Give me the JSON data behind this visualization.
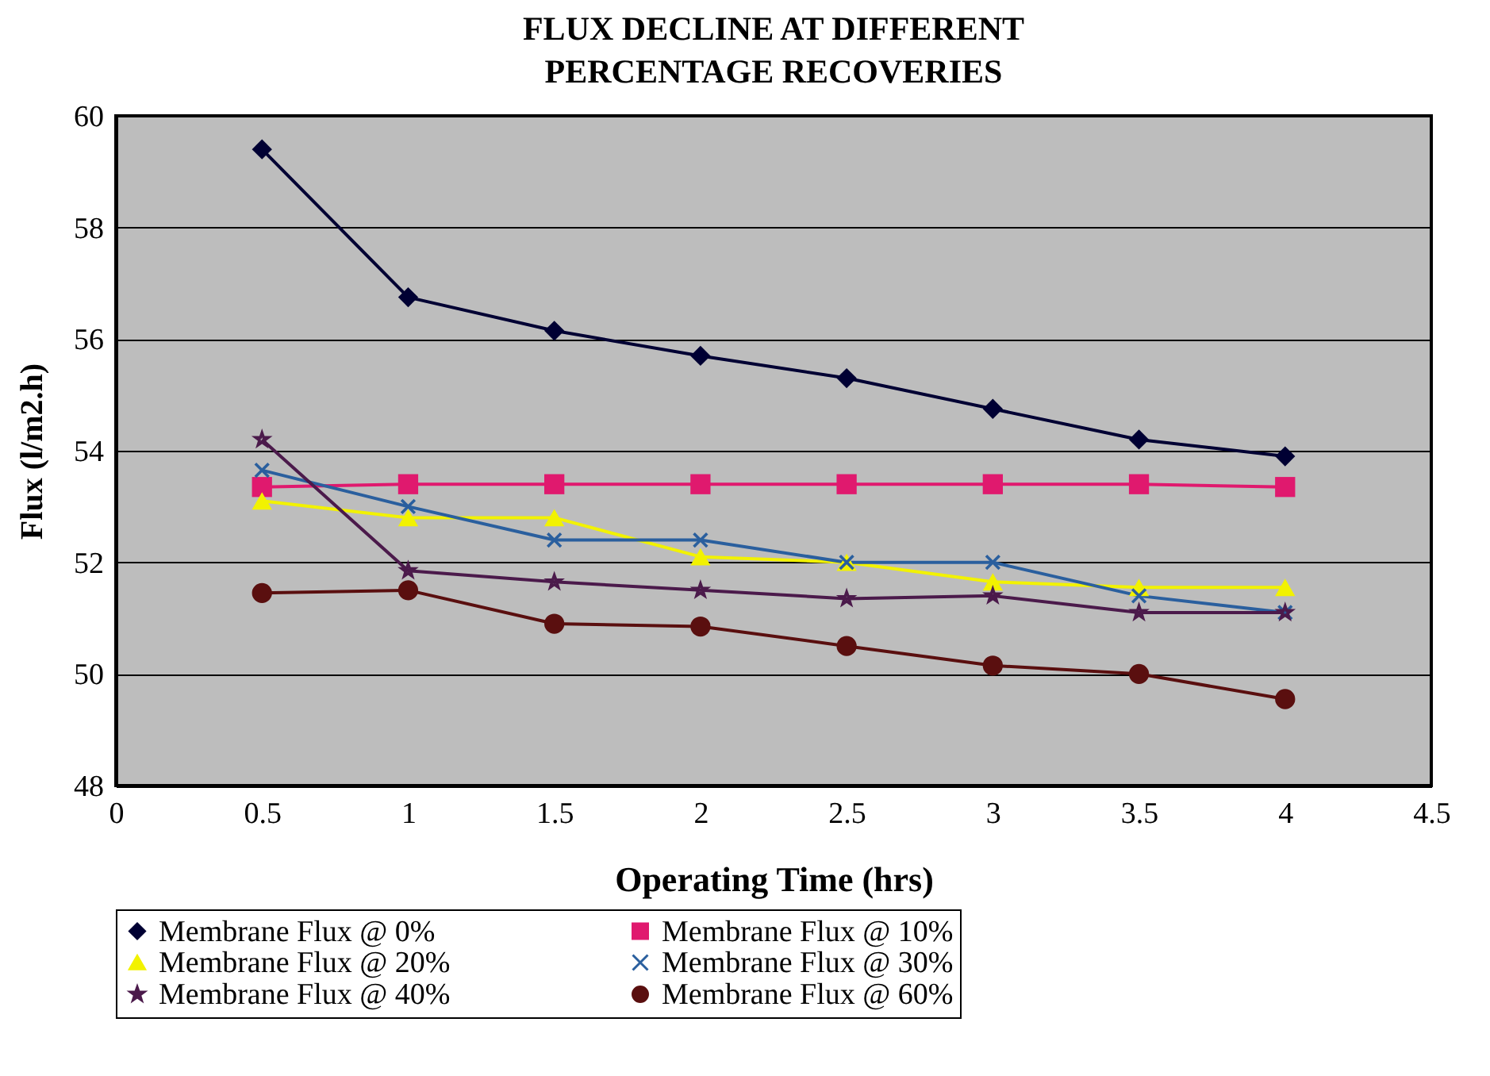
{
  "chart_data": {
    "type": "line",
    "title": "FLUX DECLINE AT DIFFERENT PERCENTAGE RECOVERIES",
    "xlabel": "Operating Time (hrs)",
    "ylabel": "Flux (l/m2.h)",
    "x": [
      0.5,
      1,
      1.5,
      2,
      2.5,
      3,
      3.5,
      4
    ],
    "series": [
      {
        "name": "Membrane Flux @ 0%",
        "color": "#000033",
        "marker": "diamond",
        "values": [
          59.4,
          56.75,
          56.15,
          55.7,
          55.3,
          54.75,
          54.2,
          53.9
        ]
      },
      {
        "name": "Membrane Flux @ 10%",
        "color": "#e0196e",
        "marker": "square",
        "values": [
          53.35,
          53.4,
          53.4,
          53.4,
          53.4,
          53.4,
          53.4,
          53.35
        ]
      },
      {
        "name": "Membrane Flux @ 20%",
        "color": "#f2f200",
        "marker": "triangle",
        "values": [
          53.1,
          52.8,
          52.8,
          52.1,
          52.0,
          51.65,
          51.55,
          51.55
        ]
      },
      {
        "name": "Membrane Flux @ 30%",
        "color": "#2a5f9e",
        "marker": "cross",
        "values": [
          53.65,
          53.0,
          52.4,
          52.4,
          52.0,
          52.0,
          51.4,
          51.1
        ]
      },
      {
        "name": "Membrane Flux @ 40%",
        "color": "#4b1a4b",
        "marker": "star",
        "values": [
          54.2,
          51.85,
          51.65,
          51.5,
          51.35,
          51.4,
          51.1,
          51.1
        ]
      },
      {
        "name": "Membrane Flux @ 60%",
        "color": "#5a0f0f",
        "marker": "circle",
        "values": [
          51.45,
          51.5,
          50.9,
          50.85,
          50.5,
          50.15,
          50.0,
          49.55
        ]
      }
    ],
    "xlim": [
      0,
      4.5
    ],
    "xticks": [
      0,
      0.5,
      1,
      1.5,
      2,
      2.5,
      3,
      3.5,
      4,
      4.5
    ],
    "ylim": [
      48,
      60
    ],
    "yticks": [
      48,
      50,
      52,
      54,
      56,
      58,
      60
    ],
    "grid": "y",
    "legend": "bottom"
  }
}
